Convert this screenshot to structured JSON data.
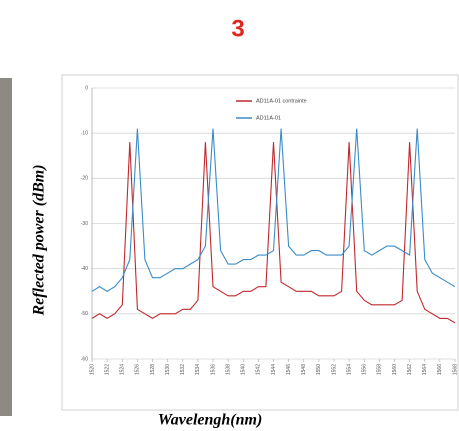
{
  "slide_number": "3",
  "chart_data": {
    "type": "line",
    "x_label": "Wavelengh(nm)",
    "y_label": "Reflected power (dBm)",
    "x": [
      1520,
      1521,
      1522,
      1523,
      1524,
      1525,
      1526,
      1527,
      1528,
      1529,
      1530,
      1531,
      1532,
      1533,
      1534,
      1535,
      1536,
      1537,
      1538,
      1539,
      1540,
      1541,
      1542,
      1543,
      1544,
      1545,
      1546,
      1547,
      1548,
      1549,
      1550,
      1551,
      1552,
      1553,
      1554,
      1555,
      1556,
      1557,
      1558,
      1559,
      1560,
      1561,
      1562,
      1563,
      1564,
      1565,
      1566,
      1567,
      1568
    ],
    "xlim": [
      1520,
      1568
    ],
    "xticks": [
      1520,
      1522,
      1524,
      1526,
      1528,
      1530,
      1532,
      1534,
      1536,
      1538,
      1540,
      1542,
      1544,
      1546,
      1548,
      1550,
      1552,
      1554,
      1556,
      1558,
      1560,
      1562,
      1564,
      1566,
      1568
    ],
    "ylim": [
      -60,
      0
    ],
    "yticks": [
      0,
      -10,
      -20,
      -30,
      -40,
      -50,
      -60
    ],
    "grid": true,
    "series": [
      {
        "name": "AD11A-01 contrainte",
        "color": "#c0282d",
        "values": [
          -51,
          -50,
          -51,
          -50,
          -48,
          -12,
          -49,
          -50,
          -51,
          -50,
          -50,
          -50,
          -49,
          -49,
          -47,
          -12,
          -44,
          -45,
          -46,
          -46,
          -45,
          -45,
          -44,
          -44,
          -12,
          -43,
          -44,
          -45,
          -45,
          -45,
          -46,
          -46,
          -46,
          -45,
          -12,
          -45,
          -47,
          -48,
          -48,
          -48,
          -48,
          -47,
          -12,
          -45,
          -49,
          -50,
          -51,
          -51,
          -52
        ]
      },
      {
        "name": "AD11A-01",
        "color": "#3a8cc8",
        "values": [
          -45,
          -44,
          -45,
          -44,
          -42,
          -38,
          -9,
          -38,
          -42,
          -42,
          -41,
          -40,
          -40,
          -39,
          -38,
          -35,
          -9,
          -36,
          -39,
          -39,
          -38,
          -38,
          -37,
          -37,
          -36,
          -9,
          -35,
          -37,
          -37,
          -36,
          -36,
          -37,
          -37,
          -37,
          -35,
          -9,
          -36,
          -37,
          -36,
          -35,
          -35,
          -36,
          -37,
          -9,
          -38,
          -41,
          -42,
          -43,
          -44
        ]
      }
    ]
  }
}
